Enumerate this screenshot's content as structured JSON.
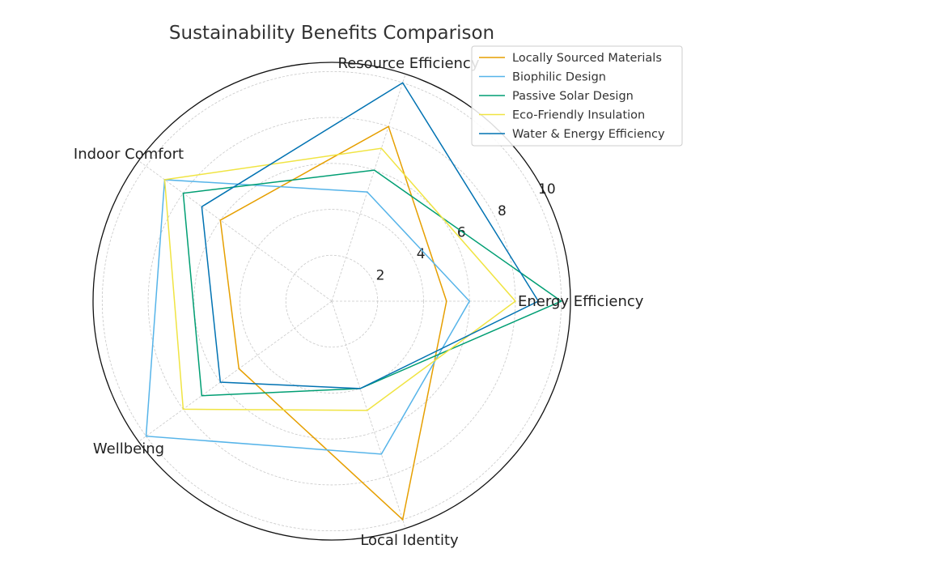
{
  "chart_data": {
    "type": "radar",
    "title": "Sustainability Benefits Comparison",
    "categories": [
      "Energy Efficiency",
      "Resource Efficiency",
      "Indoor Comfort",
      "Wellbeing",
      "Local Identity"
    ],
    "radial_ticks": [
      2,
      4,
      6,
      8,
      10
    ],
    "rlim": [
      0,
      10.4
    ],
    "grid": true,
    "legend_position": "top-right",
    "series": [
      {
        "name": "Locally Sourced Materials",
        "color": "#E69F00",
        "values": [
          5,
          8,
          6,
          5,
          10
        ]
      },
      {
        "name": "Biophilic Design",
        "color": "#56B4E9",
        "values": [
          6,
          5,
          9,
          10,
          7
        ]
      },
      {
        "name": "Passive Solar Design",
        "color": "#009E73",
        "values": [
          10,
          6,
          8,
          7,
          4
        ]
      },
      {
        "name": "Eco-Friendly Insulation",
        "color": "#F0E442",
        "values": [
          8,
          7,
          9,
          8,
          5
        ]
      },
      {
        "name": "Water & Energy Efficiency",
        "color": "#0072B2",
        "values": [
          9,
          10,
          7,
          6,
          4
        ]
      }
    ]
  }
}
